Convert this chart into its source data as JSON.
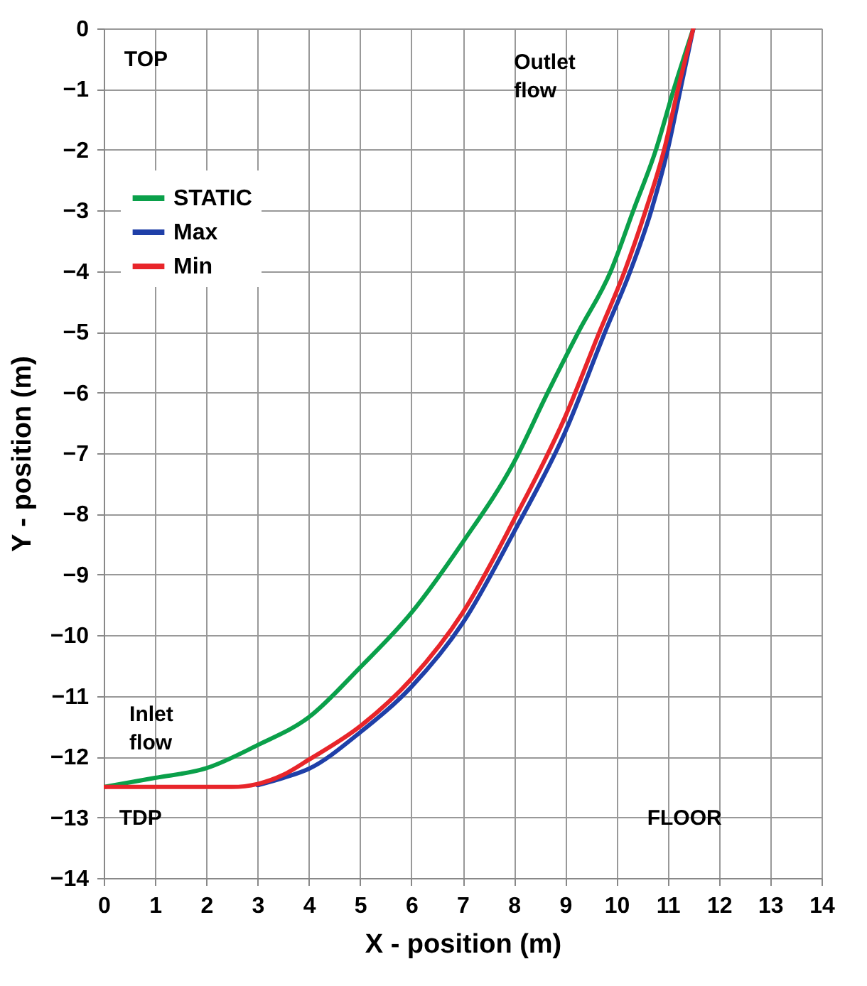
{
  "chart_data": {
    "type": "line",
    "xlabel": "X -  position (m)",
    "ylabel": "Y -  position (m)",
    "xlim": [
      0,
      14
    ],
    "ylim": [
      -14,
      0
    ],
    "xticks": [
      0,
      1,
      2,
      3,
      4,
      5,
      6,
      7,
      8,
      9,
      10,
      11,
      12,
      13,
      14
    ],
    "yticks": [
      0,
      -1,
      -2,
      -3,
      -4,
      -5,
      -6,
      -7,
      -8,
      -9,
      -10,
      -11,
      -12,
      -13,
      -14
    ],
    "grid": true,
    "legend": "top left",
    "line_style": "solid",
    "marker": "none",
    "annotations": [
      "TOP",
      "Outlet flow",
      "Inlet flow",
      "TDP",
      "FLOOR"
    ],
    "series": [
      {
        "name": "STATIC",
        "color": "#0aa04a",
        "x": [
          0,
          1,
          2,
          3,
          4,
          5,
          6,
          7,
          8,
          8.66,
          9.26,
          9.89,
          10.33,
          10.77,
          11.12,
          11.5
        ],
        "values": [
          -12.5,
          -12.35,
          -12.19,
          -11.81,
          -11.35,
          -10.53,
          -9.63,
          -8.47,
          -7.15,
          -6,
          -5,
          -4,
          -3,
          -2,
          -1,
          0
        ]
      },
      {
        "name": "Max",
        "color": "#1f3fa8",
        "x": [
          3,
          3.5,
          4,
          5,
          6,
          7,
          8,
          9,
          9.78,
          10.27,
          10.68,
          11.0,
          11.25,
          11.5
        ],
        "values": [
          -12.47,
          -12.35,
          -12.2,
          -11.6,
          -10.85,
          -9.8,
          -8.3,
          -6.65,
          -5,
          -4,
          -3,
          -2,
          -1,
          0
        ]
      },
      {
        "name": "Min",
        "color": "#e8252a",
        "x": [
          0,
          1,
          2,
          2.5,
          3,
          3.5,
          4,
          5,
          6,
          7,
          8,
          9,
          9.67,
          10.16,
          10.57,
          10.93,
          11.2,
          11.5
        ],
        "values": [
          -12.5,
          -12.5,
          -12.5,
          -12.5,
          -12.45,
          -12.3,
          -12.05,
          -11.5,
          -10.72,
          -9.63,
          -8.1,
          -6.4,
          -5,
          -4,
          -3,
          -2,
          -1,
          0
        ]
      }
    ]
  }
}
